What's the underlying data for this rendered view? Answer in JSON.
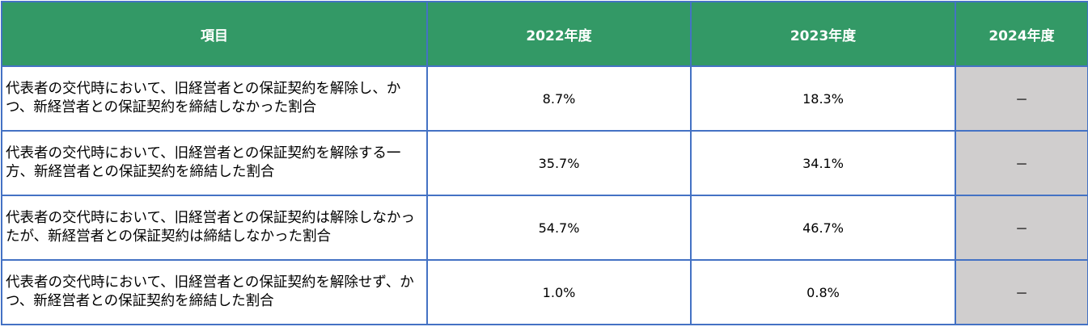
{
  "table": {
    "headers": [
      "項目",
      "2022年度",
      "2023年度",
      "2024年度"
    ],
    "rows": [
      {
        "item": "代表者の交代時において、旧経営者との保証契約を解除し、かつ、新経営者との保証契約を締結しなかった割合",
        "y2022": "8.7%",
        "y2023": "18.3%",
        "y2024": "－"
      },
      {
        "item": "代表者の交代時において、旧経営者との保証契約を解除する一方、新経営者との保証契約を締結した割合",
        "y2022": "35.7%",
        "y2023": "34.1%",
        "y2024": "－"
      },
      {
        "item": "代表者の交代時において、旧経営者との保証契約は解除しなかったが、新経営者との保証契約は締結しなかった割合",
        "y2022": "54.7%",
        "y2023": "46.7%",
        "y2024": "－"
      },
      {
        "item": "代表者の交代時において、旧経営者との保証契約を解除せず、かつ、新経営者との保証契約を締結した割合",
        "y2022": "1.0%",
        "y2023": "0.8%",
        "y2024": "－"
      }
    ],
    "colors": {
      "header_bg": "#339966",
      "header_text": "#ffffff",
      "border": "#4472c4",
      "na_bg": "#d0cece"
    }
  }
}
